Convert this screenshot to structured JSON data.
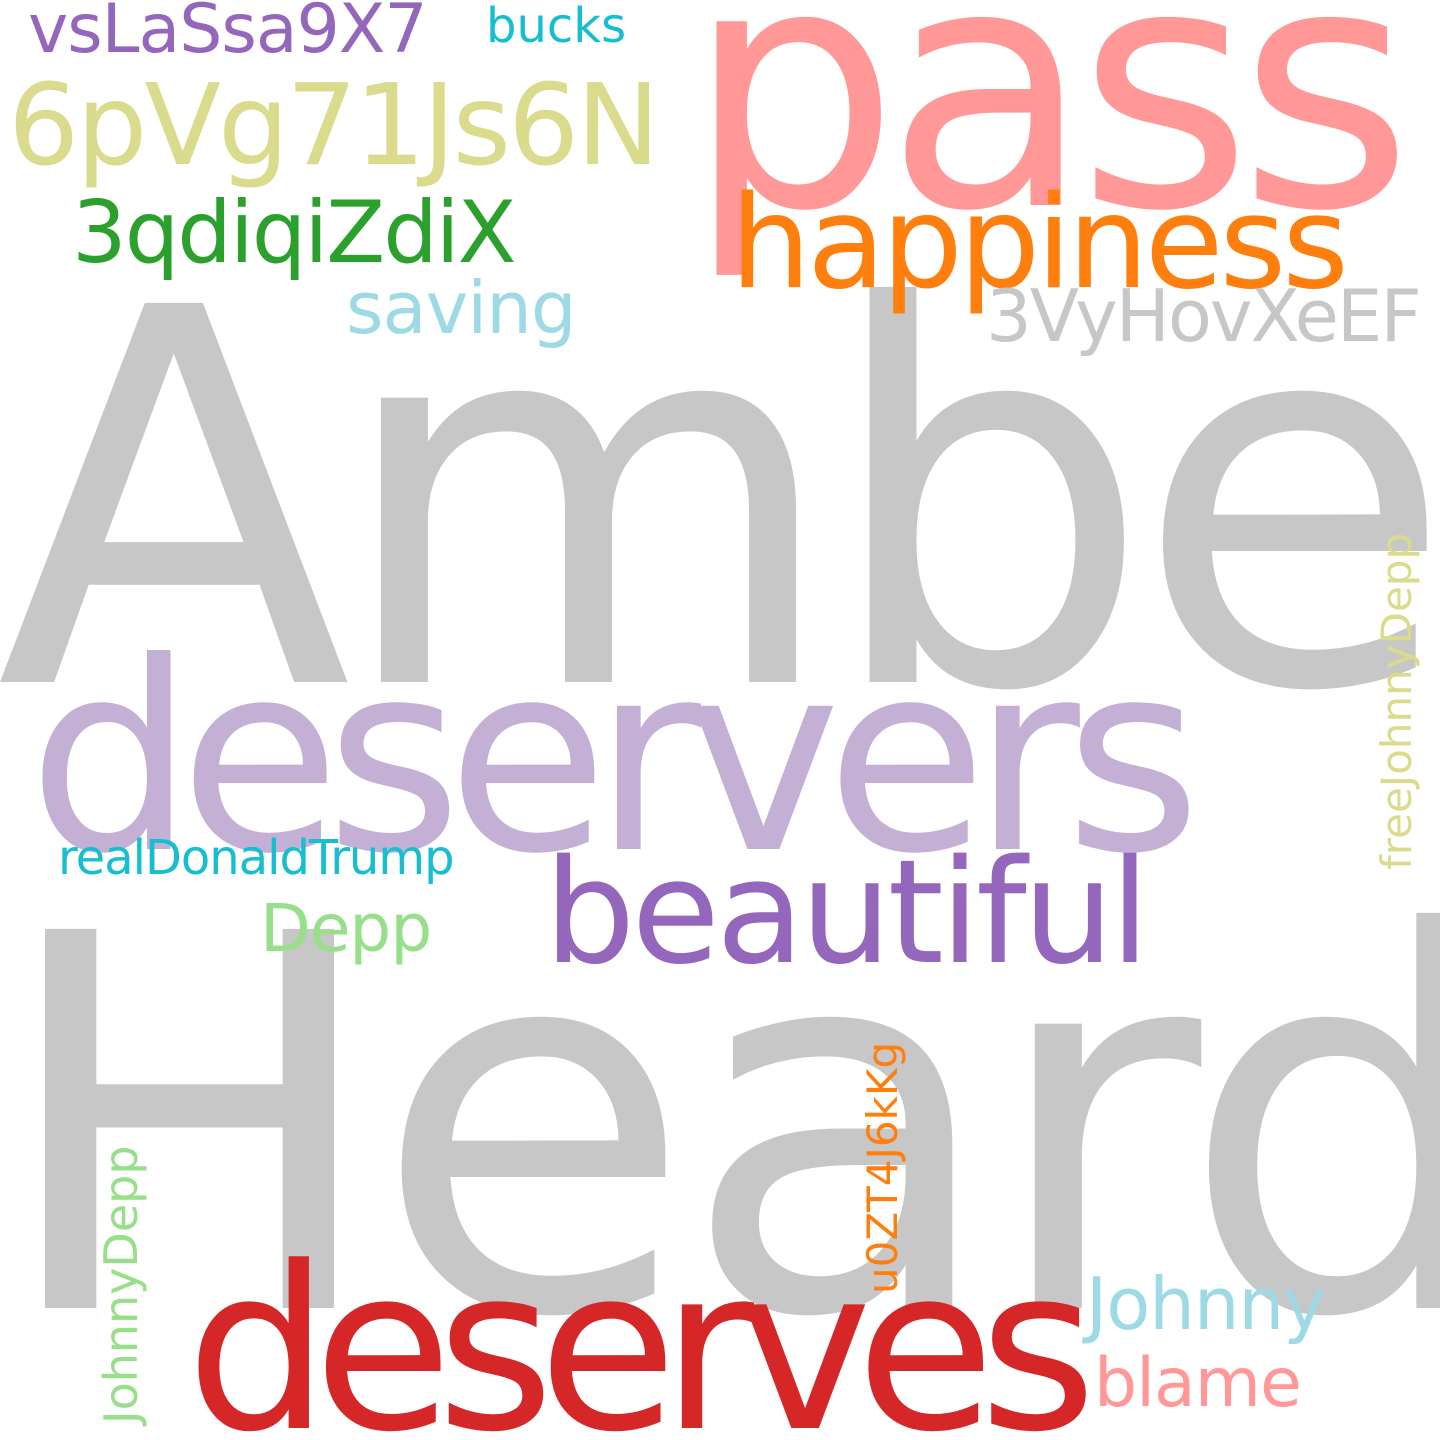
{
  "words": {
    "amber": {
      "text": "Amber",
      "color": "#c7c7c7"
    },
    "heard": {
      "text": "Heard",
      "color": "#c7c7c7"
    },
    "pass": {
      "text": "pass",
      "color": "#ff9896"
    },
    "deservers": {
      "text": "deservers",
      "color": "#c5b0d5"
    },
    "deserves": {
      "text": "deserves",
      "color": "#d62728"
    },
    "happiness": {
      "text": "happiness",
      "color": "#ff7f0e"
    },
    "beautiful": {
      "text": "beautiful",
      "color": "#9467bd"
    },
    "6pvg": {
      "text": "6pVg71Js6N",
      "color": "#dbdb8d"
    },
    "3qdi": {
      "text": "3qdiqiZdiX",
      "color": "#2ca02c"
    },
    "3vyh": {
      "text": "3VyHovXeEF",
      "color": "#c7c7c7"
    },
    "vsla": {
      "text": "vsLaSsa9X7",
      "color": "#9467bd"
    },
    "saving": {
      "text": "saving",
      "color": "#9edae5"
    },
    "johnny": {
      "text": "Johnny",
      "color": "#9edae5"
    },
    "blame": {
      "text": "blame",
      "color": "#ff9896"
    },
    "depp": {
      "text": "Depp",
      "color": "#98df8a"
    },
    "real": {
      "text": "realDonaldTrump",
      "color": "#17becf"
    },
    "bucks": {
      "text": "bucks",
      "color": "#17becf"
    },
    "freejd": {
      "text": "freeJohnnyDepp",
      "color": "#dbdb8d"
    },
    "u0zt": {
      "text": "u0ZT4J6kKg",
      "color": "#ff7f0e"
    },
    "johnnydepp": {
      "text": "JohnnyDepp",
      "color": "#98df8a"
    }
  }
}
